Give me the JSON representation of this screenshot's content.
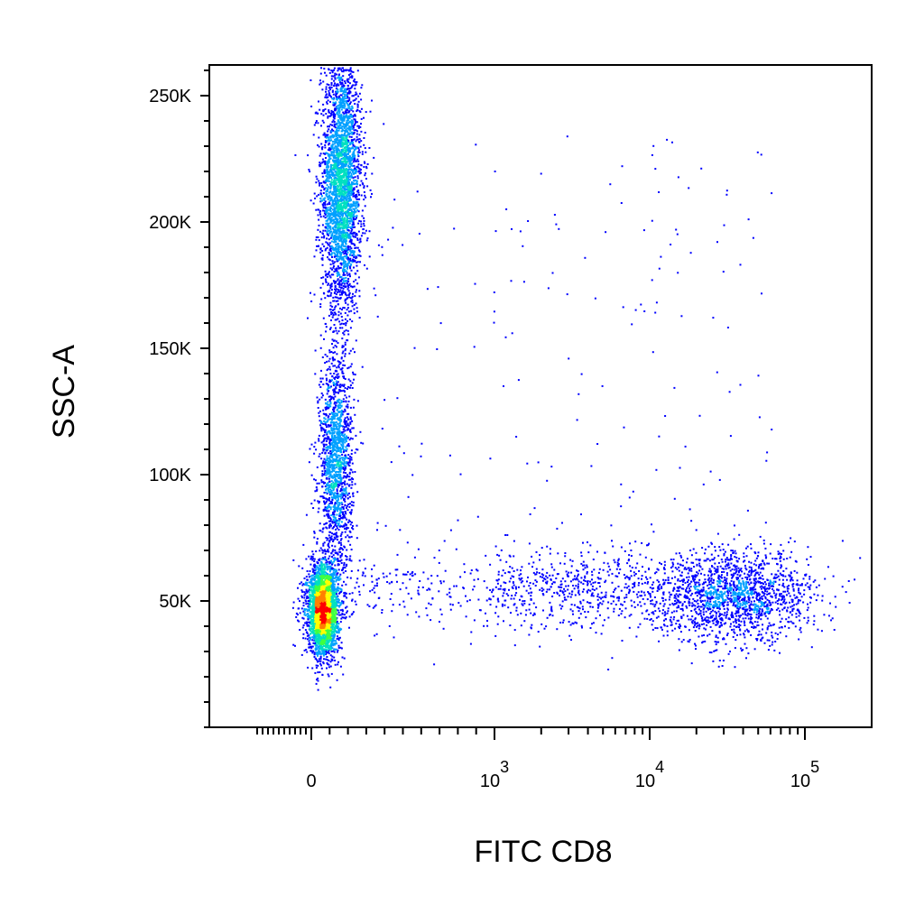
{
  "chart_data": {
    "type": "scatter",
    "subtype": "flow-cytometry-density-dot-plot",
    "xlabel": "FITC CD8",
    "ylabel": "SSC-A",
    "x_scale": "biexponential",
    "y_scale": "linear",
    "xlim": [
      -200,
      100000
    ],
    "ylim": [
      0,
      262144
    ],
    "grid": false,
    "legend": "none",
    "y_ticks": [
      {
        "value": 50000,
        "label": "50K"
      },
      {
        "value": 100000,
        "label": "100K"
      },
      {
        "value": 150000,
        "label": "150K"
      },
      {
        "value": 200000,
        "label": "200K"
      },
      {
        "value": 250000,
        "label": "250K"
      }
    ],
    "x_ticks": [
      {
        "value": 0,
        "label": "0"
      },
      {
        "value": 1000,
        "label": "10",
        "exponent": "3"
      },
      {
        "value": 10000,
        "label": "10",
        "exponent": "4"
      },
      {
        "value": 100000,
        "label": "10",
        "exponent": "5"
      }
    ],
    "density_colors": [
      "#0000ff",
      "#00a0ff",
      "#00e0c0",
      "#40ff40",
      "#ffff00",
      "#ff8000",
      "#ff0000"
    ],
    "populations": [
      {
        "x_center": 160,
        "x_spread": 55,
        "y_center": 215000,
        "y_spread": 25000,
        "peak_density": "high"
      },
      {
        "x_center": 130,
        "x_spread": 45,
        "y_center": 105000,
        "y_spread": 22000,
        "peak_density": "medium"
      },
      {
        "x_center": 60,
        "x_spread": 40,
        "y_center": 47000,
        "y_spread": 9000,
        "peak_density": "high"
      },
      {
        "x_center": 35000,
        "x_spread": 0.25,
        "y_center": 52000,
        "y_spread": 9000,
        "peak_density": "medium"
      },
      {
        "x_center": 3000,
        "x_spread": 0.6,
        "y_center": 55000,
        "y_spread": 8000,
        "peak_density": "low"
      }
    ]
  }
}
